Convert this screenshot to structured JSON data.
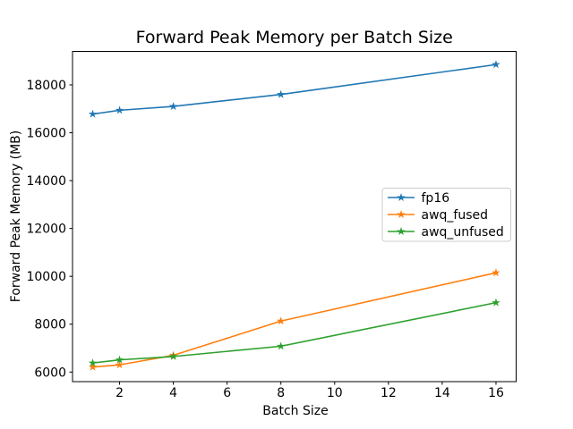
{
  "chart_data": {
    "type": "line",
    "title": "Forward Peak Memory per Batch Size",
    "xlabel": "Batch Size",
    "ylabel": "Forward Peak Memory (MB)",
    "x": [
      1,
      2,
      4,
      8,
      16
    ],
    "series": [
      {
        "name": "fp16",
        "color": "#1f77b4",
        "marker": "star",
        "values": [
          16780,
          16940,
          17100,
          17600,
          18850
        ]
      },
      {
        "name": "awq_fused",
        "color": "#ff7f0e",
        "marker": "star",
        "values": [
          6210,
          6300,
          6700,
          8130,
          10150
        ]
      },
      {
        "name": "awq_unfused",
        "color": "#2ca02c",
        "marker": "star",
        "values": [
          6380,
          6510,
          6650,
          7080,
          8900
        ]
      }
    ],
    "xlim": [
      0.25,
      16.75
    ],
    "ylim": [
      5600,
      19400
    ],
    "xticks": [
      2,
      4,
      6,
      8,
      10,
      12,
      14,
      16
    ],
    "yticks": [
      6000,
      8000,
      10000,
      12000,
      14000,
      16000,
      18000
    ],
    "grid": false,
    "legend": {
      "position": "center right",
      "entries": [
        "fp16",
        "awq_fused",
        "awq_unfused"
      ],
      "border_color": "#cccccc",
      "background": "#ffffff"
    },
    "styles": {
      "line_width": 1.6,
      "marker_size": 5,
      "spine_color": "#000000",
      "background": "#ffffff"
    }
  }
}
